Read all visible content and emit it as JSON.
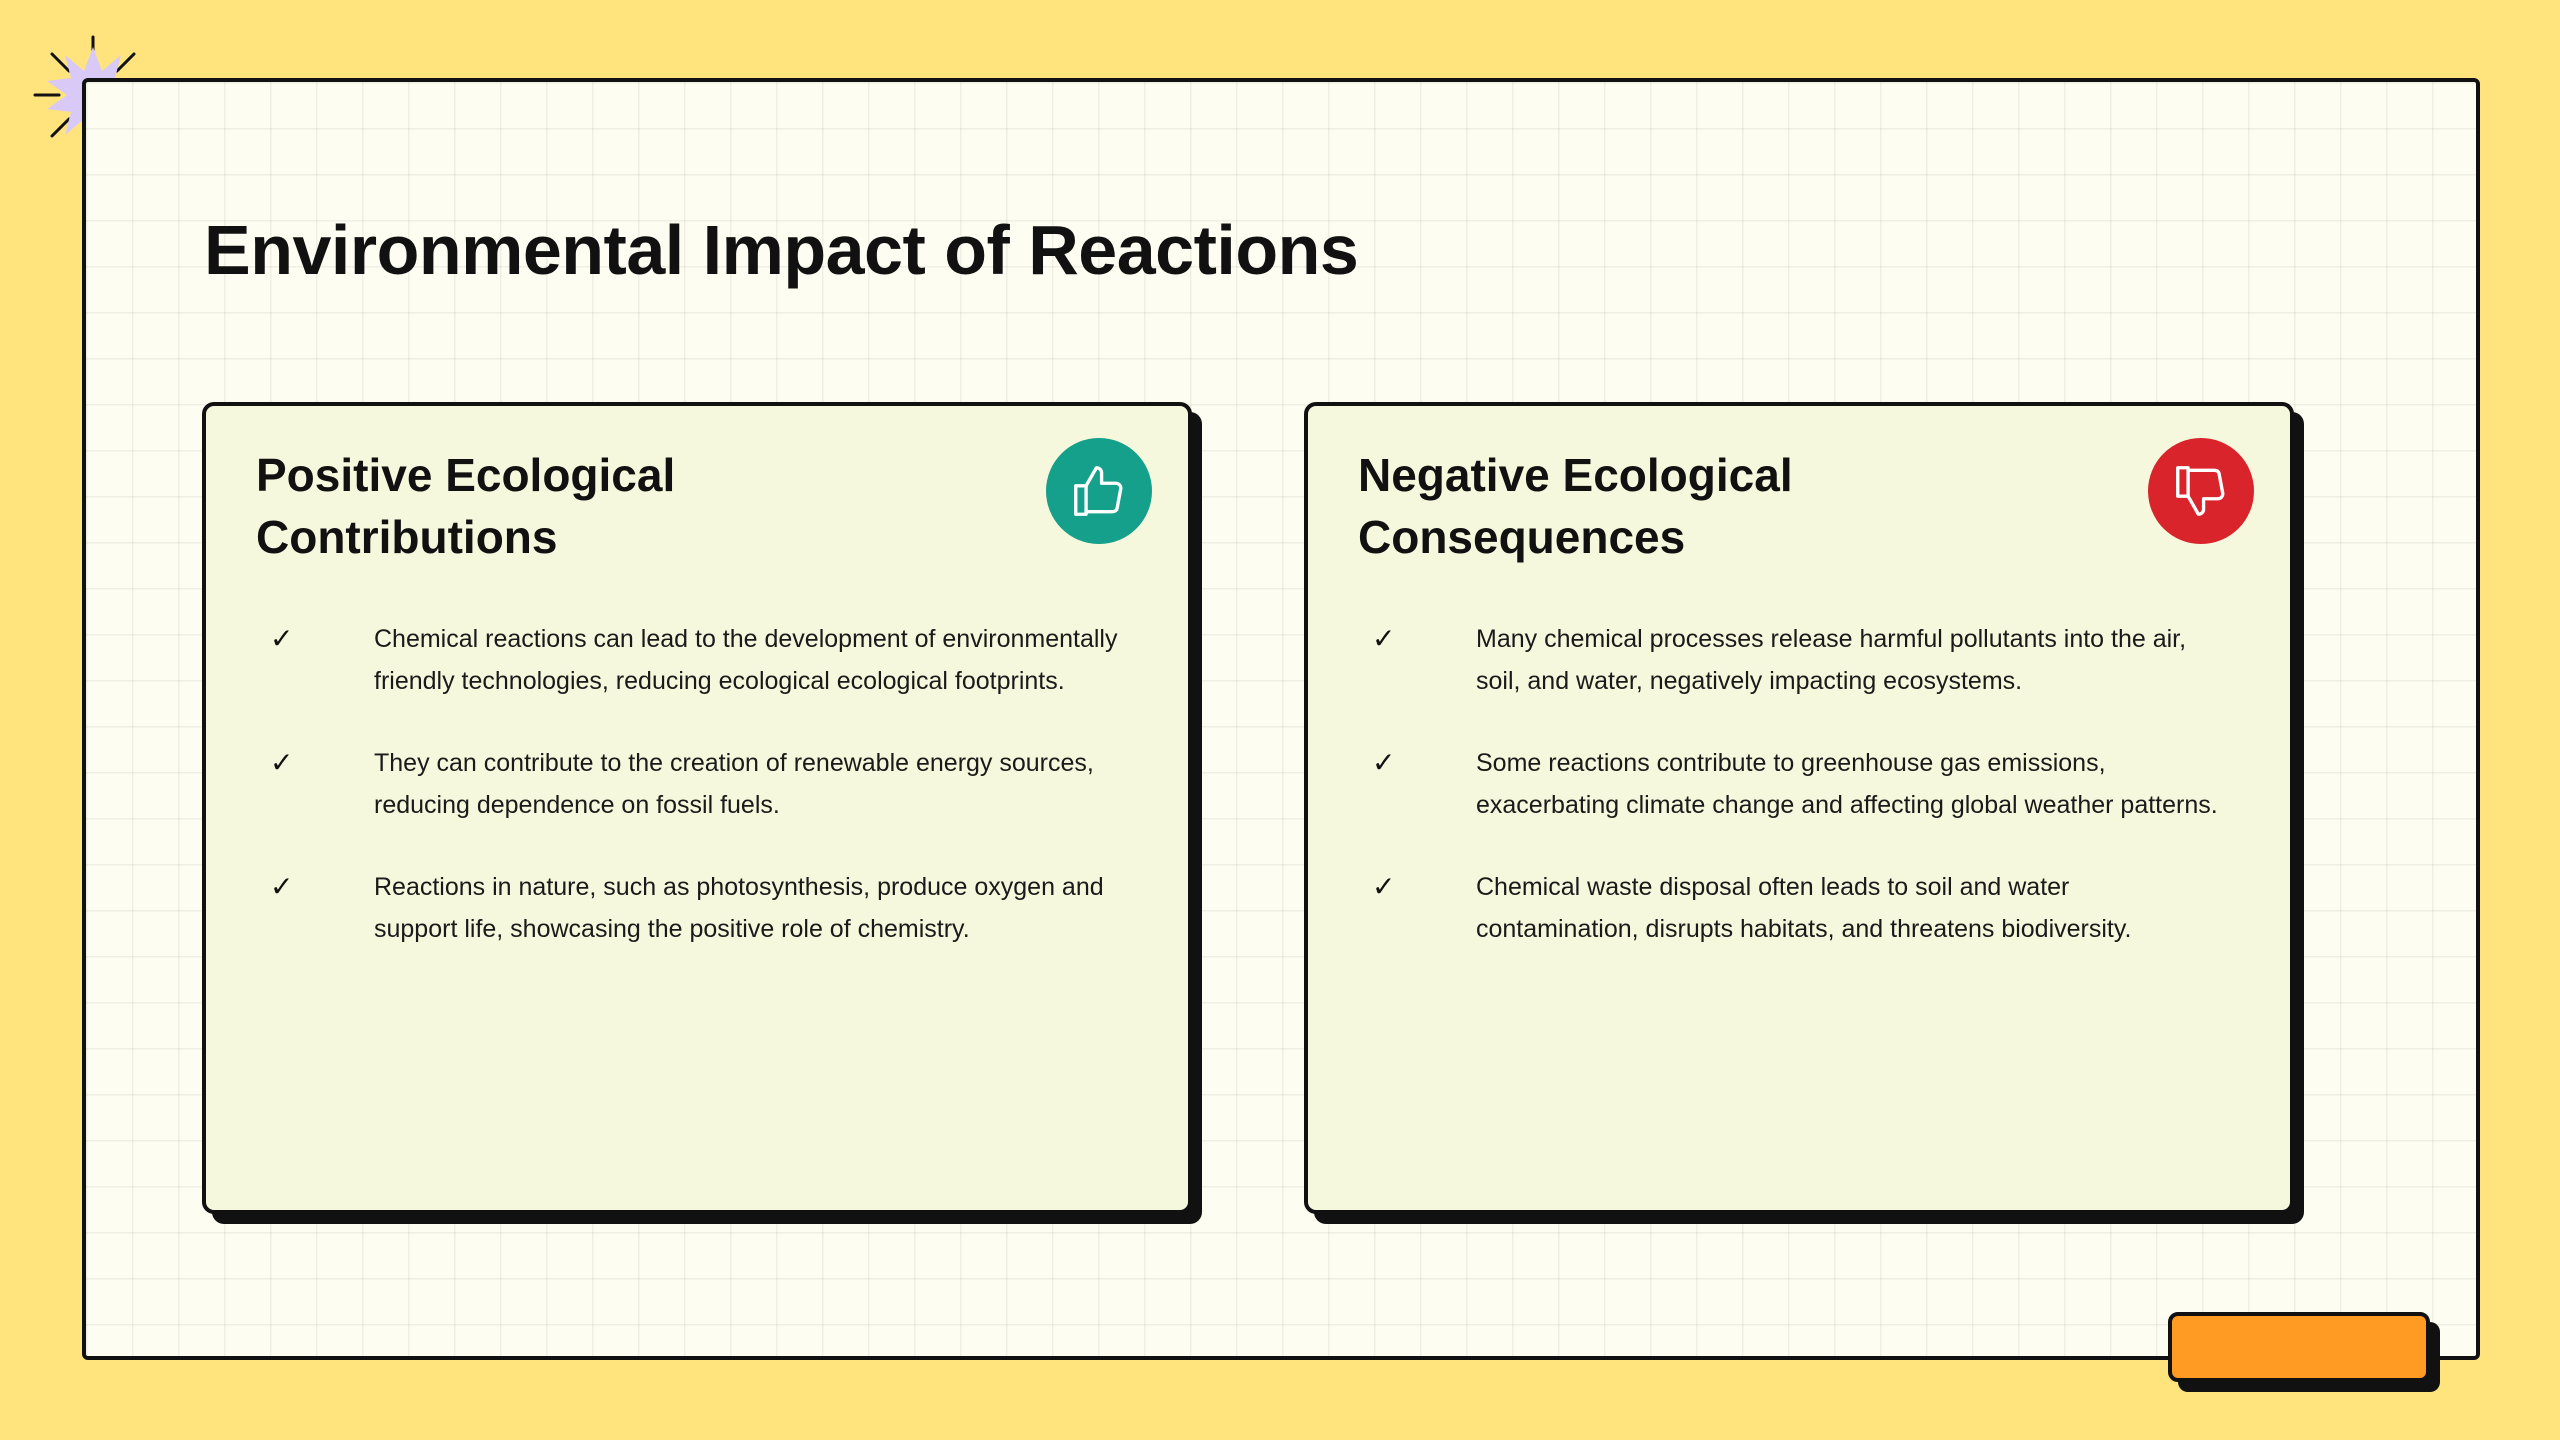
{
  "slide": {
    "title": "Environmental Impact of Reactions"
  },
  "colors": {
    "background": "#ffe47e",
    "frame": "#fdfdf1",
    "card": "#f5f8dc",
    "positive_icon": "#14a08a",
    "negative_icon": "#d9242c",
    "accent_tab": "#ff9a22",
    "starburst": "#d9c9f7"
  },
  "cards": {
    "positive": {
      "title": "Positive Ecological Contributions",
      "icon": "thumbs-up-icon",
      "check": "✓",
      "items": [
        "Chemical reactions can lead to the development of environmentally friendly technologies, reducing ecological ecological footprints.",
        "They can contribute to the creation of renewable energy sources, reducing dependence on fossil fuels.",
        "Reactions in nature, such as photosynthesis, produce oxygen and support life, showcasing the positive role of chemistry."
      ]
    },
    "negative": {
      "title": "Negative Ecological Consequences",
      "icon": "thumbs-down-icon",
      "check": "✓",
      "items": [
        "Many chemical processes release harmful pollutants into the air, soil, and water, negatively impacting ecosystems.",
        "Some reactions contribute to greenhouse gas emissions, exacerbating climate change and affecting global weather patterns.",
        "Chemical waste disposal often leads to soil and water contamination, disrupts habitats, and threatens biodiversity."
      ]
    }
  }
}
